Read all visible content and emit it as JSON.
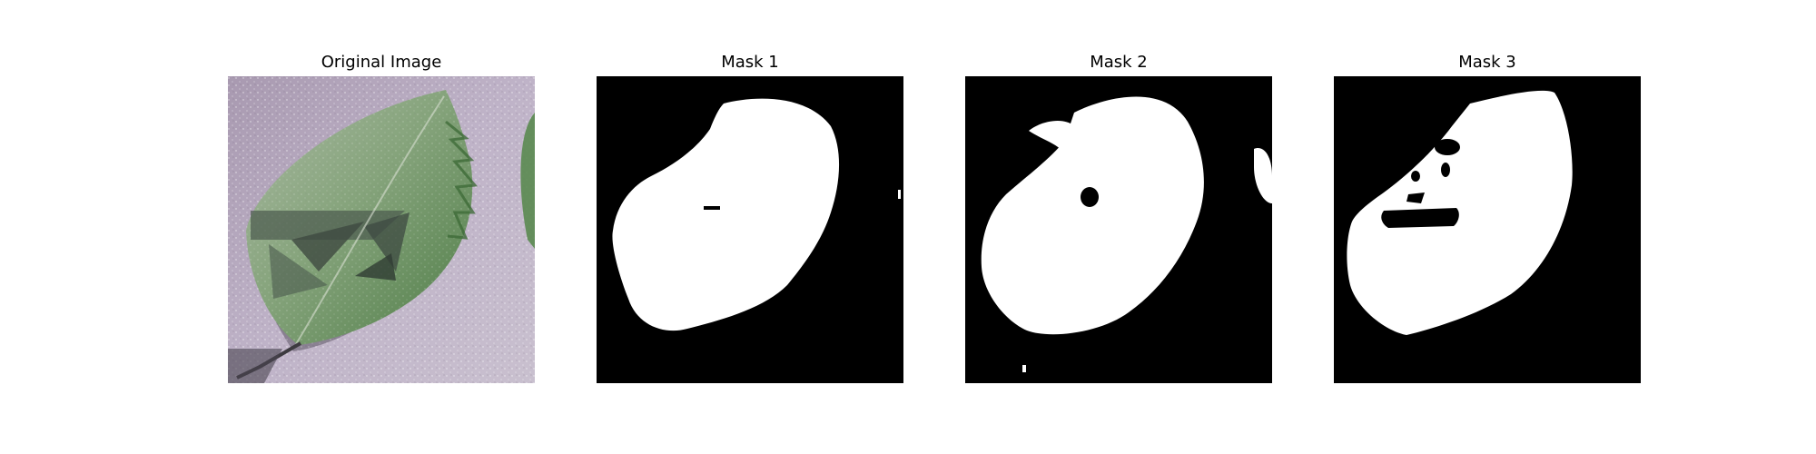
{
  "figure": {
    "panels": [
      {
        "title": "Original Image"
      },
      {
        "title": "Mask 1"
      },
      {
        "title": "Mask 2"
      },
      {
        "title": "Mask 3"
      }
    ]
  },
  "colors": {
    "background": "#ffffff",
    "mask_foreground": "#ffffff",
    "mask_background": "#000000",
    "photo_surface": "#b6a9bf",
    "leaf_green": "#5f8a55",
    "leaf_light": "#c9d6c3",
    "shadow": "#55505a"
  }
}
